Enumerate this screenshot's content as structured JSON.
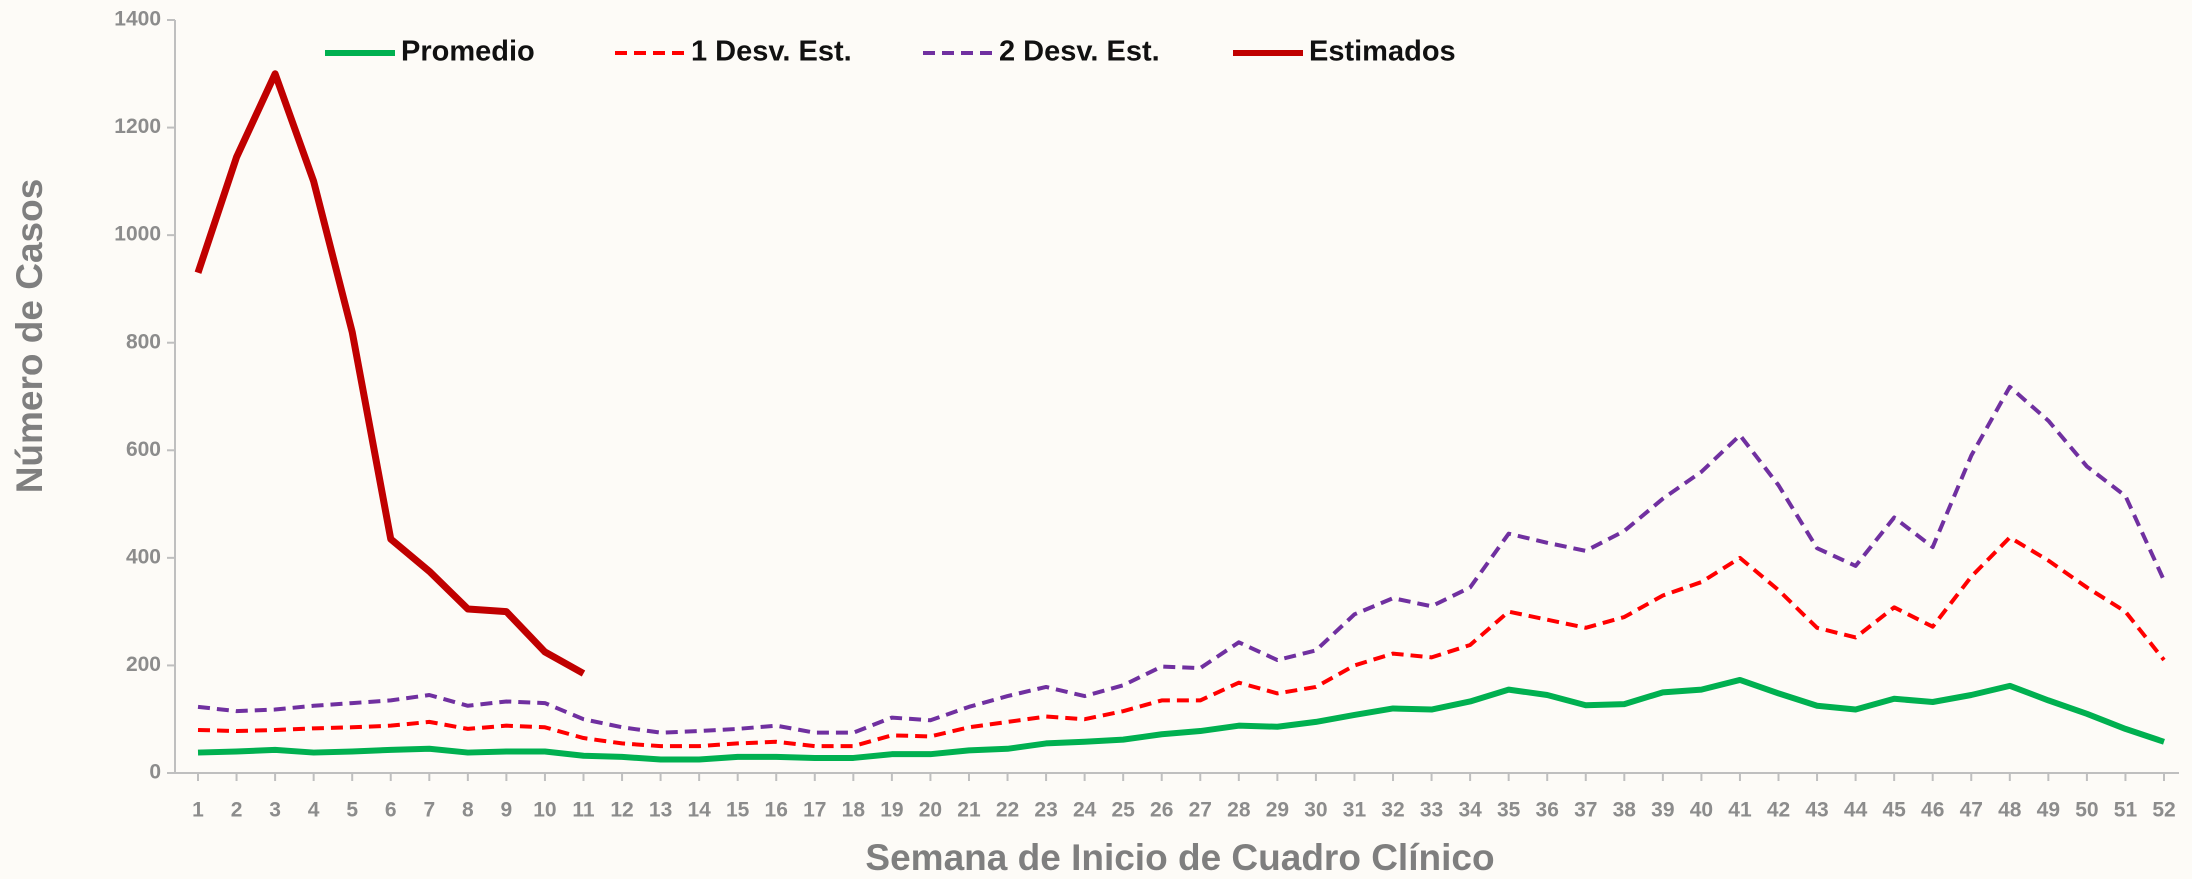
{
  "chart_data": {
    "type": "line",
    "x_label": "Semana de Inicio de Cuadro Clínico",
    "y_label": "Número de Casos",
    "x": [
      1,
      2,
      3,
      4,
      5,
      6,
      7,
      8,
      9,
      10,
      11,
      12,
      13,
      14,
      15,
      16,
      17,
      18,
      19,
      20,
      21,
      22,
      23,
      24,
      25,
      26,
      27,
      28,
      29,
      30,
      31,
      32,
      33,
      34,
      35,
      36,
      37,
      38,
      39,
      40,
      41,
      42,
      43,
      44,
      45,
      46,
      47,
      48,
      49,
      50,
      51,
      52
    ],
    "xlim": [
      1,
      52
    ],
    "ylim": [
      0,
      1400
    ],
    "yticks": [
      0,
      200,
      400,
      600,
      800,
      1000,
      1200,
      1400
    ],
    "legend": "top",
    "series": [
      {
        "name": "Promedio",
        "color": "#00b050",
        "dashed": false,
        "values": [
          38,
          40,
          43,
          38,
          40,
          43,
          45,
          38,
          40,
          40,
          32,
          30,
          25,
          25,
          30,
          30,
          28,
          28,
          35,
          35,
          42,
          45,
          55,
          58,
          62,
          72,
          78,
          88,
          86,
          95,
          108,
          120,
          118,
          133,
          155,
          145,
          126,
          128,
          150,
          155,
          173,
          148,
          125,
          118,
          138,
          132,
          145,
          162,
          135,
          110,
          82,
          58
        ]
      },
      {
        "name": "1 Desv. Est.",
        "color": "#ff0000",
        "dashed": true,
        "values": [
          80,
          78,
          80,
          83,
          85,
          88,
          95,
          82,
          88,
          85,
          65,
          55,
          50,
          50,
          55,
          58,
          50,
          50,
          70,
          68,
          85,
          95,
          105,
          100,
          115,
          135,
          135,
          168,
          148,
          160,
          200,
          222,
          215,
          238,
          300,
          285,
          270,
          290,
          330,
          355,
          400,
          340,
          270,
          252,
          308,
          272,
          365,
          438,
          395,
          345,
          300,
          210
        ]
      },
      {
        "name": "2 Desv. Est.",
        "color": "#7030a0",
        "dashed": true,
        "values": [
          123,
          115,
          118,
          125,
          130,
          135,
          145,
          125,
          133,
          130,
          100,
          85,
          75,
          78,
          82,
          88,
          75,
          75,
          103,
          98,
          123,
          143,
          160,
          143,
          163,
          198,
          195,
          243,
          210,
          228,
          295,
          325,
          310,
          345,
          445,
          428,
          413,
          450,
          510,
          560,
          628,
          535,
          418,
          385,
          475,
          420,
          590,
          718,
          655,
          570,
          515,
          358
        ]
      },
      {
        "name": "Estimados",
        "color": "#c00000",
        "dashed": false,
        "values": [
          930,
          1145,
          1300,
          1100,
          820,
          435,
          375,
          305,
          300,
          225,
          185,
          null,
          null,
          null,
          null,
          null,
          null,
          null,
          null,
          null,
          null,
          null,
          null,
          null,
          null,
          null,
          null,
          null,
          null,
          null,
          null,
          null,
          null,
          null,
          null,
          null,
          null,
          null,
          null,
          null,
          null,
          null,
          null,
          null,
          null,
          null,
          null,
          null,
          null,
          null,
          null,
          null
        ]
      }
    ]
  }
}
